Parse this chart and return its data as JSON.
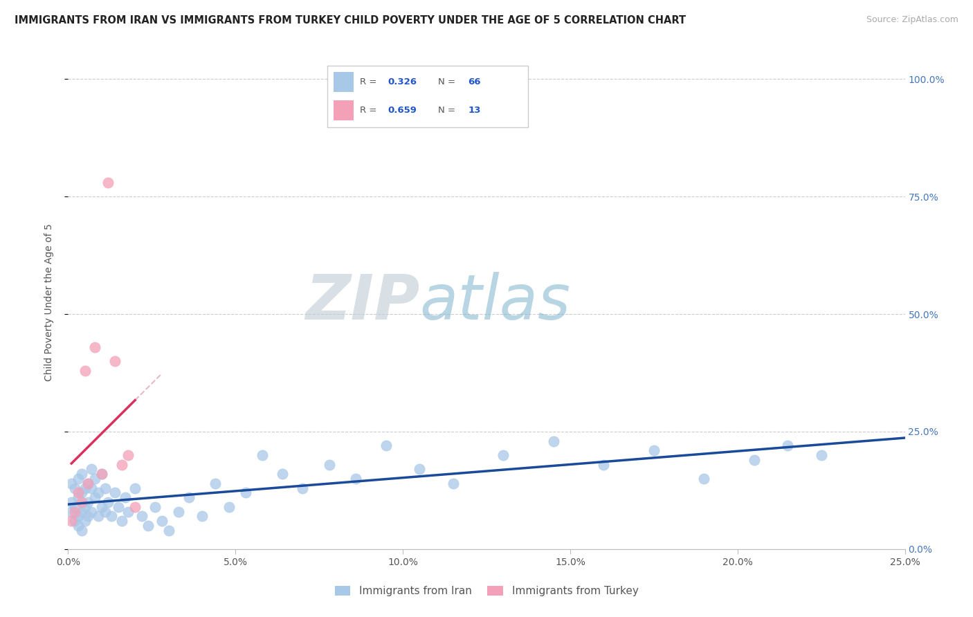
{
  "title": "IMMIGRANTS FROM IRAN VS IMMIGRANTS FROM TURKEY CHILD POVERTY UNDER THE AGE OF 5 CORRELATION CHART",
  "source": "Source: ZipAtlas.com",
  "ylabel_label": "Child Poverty Under the Age of 5",
  "iran_R": 0.326,
  "iran_N": 66,
  "turkey_R": 0.659,
  "turkey_N": 13,
  "iran_color": "#a8c8e8",
  "turkey_color": "#f4a0b8",
  "iran_line_color": "#1a4a9a",
  "turkey_line_color": "#d83060",
  "turkey_line_dash_color": "#e8b8c8",
  "watermark_zip_color": "#b8ccd8",
  "watermark_atlas_color": "#7baac8",
  "legend_iran_label": "Immigrants from Iran",
  "legend_turkey_label": "Immigrants from Turkey",
  "iran_x": [
    0.001,
    0.001,
    0.001,
    0.002,
    0.002,
    0.002,
    0.003,
    0.003,
    0.003,
    0.003,
    0.004,
    0.004,
    0.004,
    0.004,
    0.005,
    0.005,
    0.005,
    0.006,
    0.006,
    0.006,
    0.007,
    0.007,
    0.007,
    0.008,
    0.008,
    0.009,
    0.009,
    0.01,
    0.01,
    0.011,
    0.011,
    0.012,
    0.013,
    0.014,
    0.015,
    0.016,
    0.017,
    0.018,
    0.02,
    0.022,
    0.024,
    0.026,
    0.028,
    0.03,
    0.033,
    0.036,
    0.04,
    0.044,
    0.048,
    0.053,
    0.058,
    0.064,
    0.07,
    0.078,
    0.086,
    0.095,
    0.105,
    0.115,
    0.13,
    0.145,
    0.16,
    0.175,
    0.19,
    0.205,
    0.215,
    0.225
  ],
  "iran_y": [
    0.14,
    0.1,
    0.08,
    0.13,
    0.09,
    0.06,
    0.15,
    0.11,
    0.07,
    0.05,
    0.16,
    0.12,
    0.08,
    0.04,
    0.13,
    0.09,
    0.06,
    0.14,
    0.1,
    0.07,
    0.17,
    0.13,
    0.08,
    0.15,
    0.11,
    0.12,
    0.07,
    0.16,
    0.09,
    0.13,
    0.08,
    0.1,
    0.07,
    0.12,
    0.09,
    0.06,
    0.11,
    0.08,
    0.13,
    0.07,
    0.05,
    0.09,
    0.06,
    0.04,
    0.08,
    0.11,
    0.07,
    0.14,
    0.09,
    0.12,
    0.2,
    0.16,
    0.13,
    0.18,
    0.15,
    0.22,
    0.17,
    0.14,
    0.2,
    0.23,
    0.18,
    0.21,
    0.15,
    0.19,
    0.22,
    0.2
  ],
  "turkey_x": [
    0.001,
    0.002,
    0.003,
    0.004,
    0.005,
    0.006,
    0.008,
    0.01,
    0.012,
    0.014,
    0.016,
    0.018,
    0.02
  ],
  "turkey_y": [
    0.06,
    0.08,
    0.12,
    0.1,
    0.38,
    0.14,
    0.43,
    0.16,
    0.78,
    0.4,
    0.18,
    0.2,
    0.09
  ],
  "xmin": 0.0,
  "xmax": 0.25,
  "ymin": 0.0,
  "ymax": 1.05,
  "xtick_vals": [
    0.0,
    0.05,
    0.1,
    0.15,
    0.2,
    0.25
  ],
  "ytick_vals": [
    0.0,
    0.25,
    0.5,
    0.75,
    1.0
  ],
  "xtick_labels": [
    "0.0%",
    "5.0%",
    "10.0%",
    "15.0%",
    "20.0%",
    "25.0%"
  ],
  "ytick_labels": [
    "0.0%",
    "25.0%",
    "50.0%",
    "75.0%",
    "100.0%"
  ]
}
